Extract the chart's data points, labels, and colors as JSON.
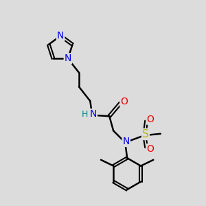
{
  "background_color": "#dcdcdc",
  "atom_colors": {
    "N": "#0000ee",
    "O": "#ee0000",
    "S": "#bbbb00",
    "C": "#000000",
    "H": "#008888"
  },
  "bond_color": "#000000",
  "bond_width": 1.8,
  "figsize": [
    3.0,
    3.0
  ],
  "dpi": 100,
  "xlim": [
    0,
    10
  ],
  "ylim": [
    0,
    10
  ]
}
